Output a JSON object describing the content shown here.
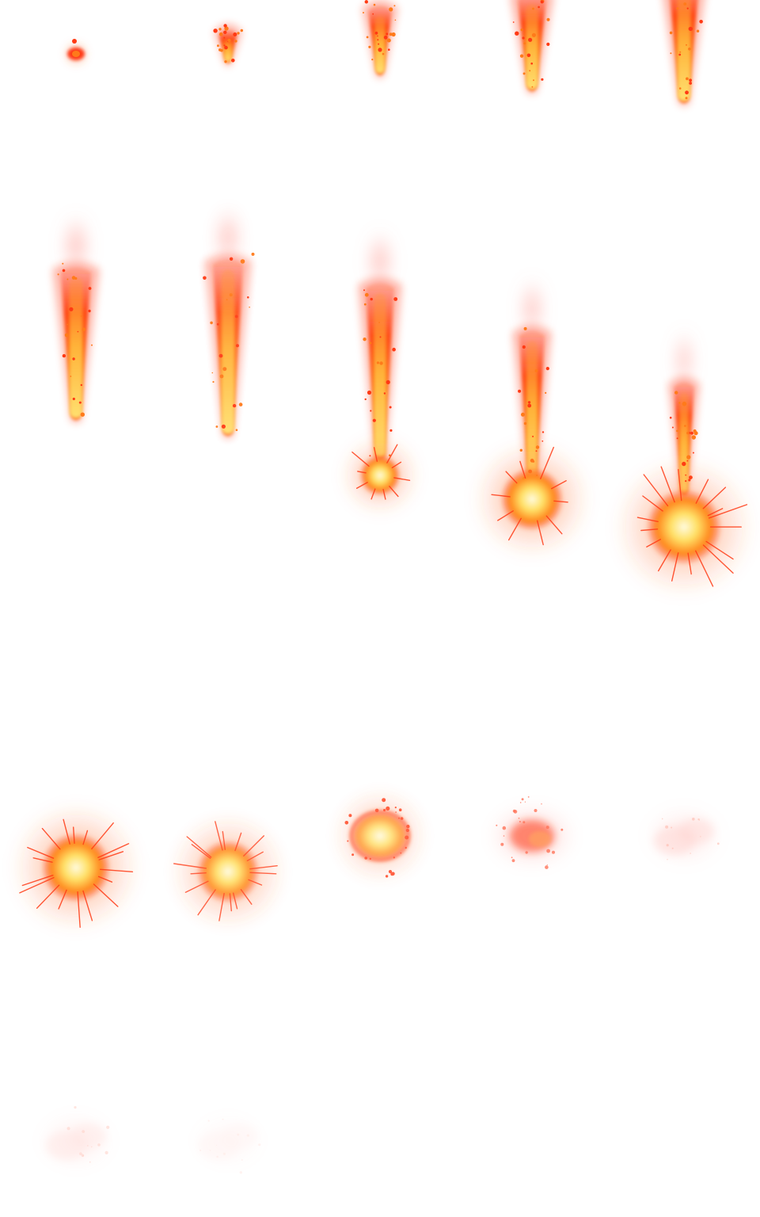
{
  "sprite_sheet": {
    "columns": 5,
    "rows": 4,
    "frame_count": 17,
    "palette": {
      "core": "#fff6b0",
      "hot": "#ffd23a",
      "flame": "#ff7a1a",
      "ember": "#ff3a14",
      "smoke": "#ff8a80"
    },
    "frames": [
      {
        "phase": "spark",
        "intensity": 1.0
      },
      {
        "phase": "trail",
        "intensity": 1.0
      },
      {
        "phase": "trail",
        "intensity": 1.0
      },
      {
        "phase": "trail",
        "intensity": 1.0
      },
      {
        "phase": "trail",
        "intensity": 1.0
      },
      {
        "phase": "trail",
        "intensity": 1.0
      },
      {
        "phase": "trail",
        "intensity": 0.95
      },
      {
        "phase": "impact",
        "intensity": 1.0
      },
      {
        "phase": "impact",
        "intensity": 1.0
      },
      {
        "phase": "explosion",
        "intensity": 1.0
      },
      {
        "phase": "explosion",
        "intensity": 1.0
      },
      {
        "phase": "explosion",
        "intensity": 0.9
      },
      {
        "phase": "burst",
        "intensity": 0.8
      },
      {
        "phase": "dissipate",
        "intensity": 0.7
      },
      {
        "phase": "smoke",
        "intensity": 0.35
      },
      {
        "phase": "smoke",
        "intensity": 0.22
      },
      {
        "phase": "smoke",
        "intensity": 0.1
      }
    ]
  }
}
